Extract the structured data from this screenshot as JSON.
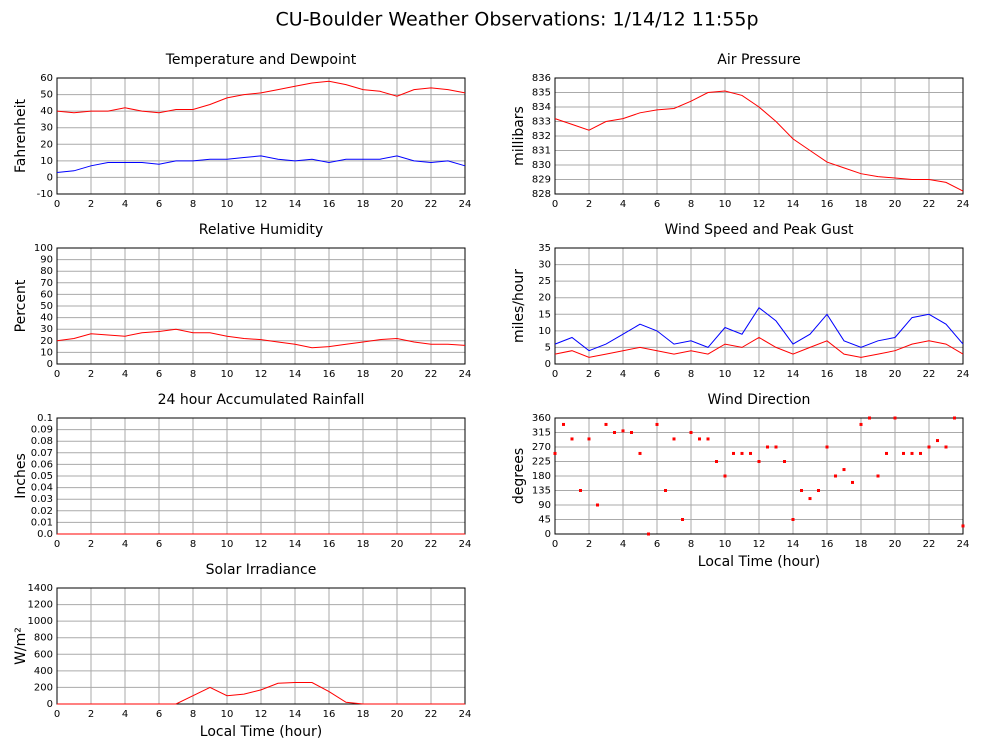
{
  "title": "CU-Boulder Weather Observations: 1/14/12 11:55p",
  "chart_data": [
    {
      "type": "line",
      "title": "Temperature and Dewpoint",
      "ylabel": "Fahrenheit",
      "x": [
        0,
        1,
        2,
        3,
        4,
        5,
        6,
        7,
        8,
        9,
        10,
        11,
        12,
        13,
        14,
        15,
        16,
        17,
        18,
        19,
        20,
        21,
        22,
        23,
        24
      ],
      "series": [
        {
          "color": "#ff0000",
          "values": [
            40,
            39,
            40,
            40,
            42,
            40,
            39,
            41,
            41,
            44,
            48,
            50,
            51,
            53,
            55,
            57,
            58,
            56,
            53,
            52,
            49,
            53,
            54,
            53,
            51
          ]
        },
        {
          "color": "#0000ff",
          "values": [
            3,
            4,
            7,
            9,
            9,
            9,
            8,
            10,
            10,
            11,
            11,
            12,
            13,
            11,
            10,
            11,
            9,
            11,
            11,
            11,
            13,
            10,
            9,
            10,
            7
          ]
        }
      ],
      "xlim": [
        0,
        24
      ],
      "xticks": [
        0,
        2,
        4,
        6,
        8,
        10,
        12,
        14,
        16,
        18,
        20,
        22,
        24
      ],
      "ylim": [
        -10,
        60
      ],
      "yticks": [
        -10,
        0,
        10,
        20,
        30,
        40,
        50,
        60
      ],
      "grid": true
    },
    {
      "type": "line",
      "title": "Air Pressure",
      "ylabel": "millibars",
      "x": [
        0,
        1,
        2,
        3,
        4,
        5,
        6,
        7,
        8,
        9,
        10,
        11,
        12,
        13,
        14,
        15,
        16,
        17,
        18,
        19,
        20,
        21,
        22,
        23,
        24
      ],
      "series": [
        {
          "color": "#ff0000",
          "values": [
            833.2,
            832.8,
            832.4,
            833.0,
            833.2,
            833.6,
            833.8,
            833.9,
            834.4,
            835.0,
            835.1,
            834.8,
            834.0,
            833.0,
            831.8,
            831.0,
            830.2,
            829.8,
            829.4,
            829.2,
            829.1,
            829.0,
            829.0,
            828.8,
            828.2
          ]
        }
      ],
      "xlim": [
        0,
        24
      ],
      "xticks": [
        0,
        2,
        4,
        6,
        8,
        10,
        12,
        14,
        16,
        18,
        20,
        22,
        24
      ],
      "ylim": [
        828,
        836
      ],
      "yticks": [
        828,
        829,
        830,
        831,
        832,
        833,
        834,
        835,
        836
      ],
      "grid": true
    },
    {
      "type": "line",
      "title": "Relative Humidity",
      "ylabel": "Percent",
      "x": [
        0,
        1,
        2,
        3,
        4,
        5,
        6,
        7,
        8,
        9,
        10,
        11,
        12,
        13,
        14,
        15,
        16,
        17,
        18,
        19,
        20,
        21,
        22,
        23,
        24
      ],
      "series": [
        {
          "color": "#ff0000",
          "values": [
            20,
            22,
            26,
            25,
            24,
            27,
            28,
            30,
            27,
            27,
            24,
            22,
            21,
            19,
            17,
            14,
            15,
            17,
            19,
            21,
            22,
            19,
            17,
            17,
            16
          ]
        }
      ],
      "xlim": [
        0,
        24
      ],
      "xticks": [
        0,
        2,
        4,
        6,
        8,
        10,
        12,
        14,
        16,
        18,
        20,
        22,
        24
      ],
      "ylim": [
        0,
        100
      ],
      "yticks": [
        0,
        10,
        20,
        30,
        40,
        50,
        60,
        70,
        80,
        90,
        100
      ],
      "grid": true
    },
    {
      "type": "line",
      "title": "Wind Speed and Peak Gust",
      "ylabel": "miles/hour",
      "x": [
        0,
        1,
        2,
        3,
        4,
        5,
        6,
        7,
        8,
        9,
        10,
        11,
        12,
        13,
        14,
        15,
        16,
        17,
        18,
        19,
        20,
        21,
        22,
        23,
        24
      ],
      "series": [
        {
          "color": "#0000ff",
          "values": [
            6,
            8,
            4,
            6,
            9,
            12,
            10,
            6,
            7,
            5,
            11,
            9,
            17,
            13,
            6,
            9,
            15,
            7,
            5,
            7,
            8,
            14,
            15,
            12,
            6
          ]
        },
        {
          "color": "#ff0000",
          "values": [
            3,
            4,
            2,
            3,
            4,
            5,
            4,
            3,
            4,
            3,
            6,
            5,
            8,
            5,
            3,
            5,
            7,
            3,
            2,
            3,
            4,
            6,
            7,
            6,
            3
          ]
        }
      ],
      "xlim": [
        0,
        24
      ],
      "xticks": [
        0,
        2,
        4,
        6,
        8,
        10,
        12,
        14,
        16,
        18,
        20,
        22,
        24
      ],
      "ylim": [
        0,
        35
      ],
      "yticks": [
        0,
        5,
        10,
        15,
        20,
        25,
        30,
        35
      ],
      "grid": true
    },
    {
      "type": "line",
      "title": "24 hour Accumulated Rainfall",
      "ylabel": "Inches",
      "x": [
        0,
        1,
        2,
        3,
        4,
        5,
        6,
        7,
        8,
        9,
        10,
        11,
        12,
        13,
        14,
        15,
        16,
        17,
        18,
        19,
        20,
        21,
        22,
        23,
        24
      ],
      "series": [
        {
          "color": "#ff0000",
          "values": [
            0,
            0,
            0,
            0,
            0,
            0,
            0,
            0,
            0,
            0,
            0,
            0,
            0,
            0,
            0,
            0,
            0,
            0,
            0,
            0,
            0,
            0,
            0,
            0,
            0
          ]
        }
      ],
      "xlim": [
        0,
        24
      ],
      "xticks": [
        0,
        2,
        4,
        6,
        8,
        10,
        12,
        14,
        16,
        18,
        20,
        22,
        24
      ],
      "ylim": [
        0,
        0.1
      ],
      "yticks": [
        {
          "value": 0,
          "label": "0.0"
        },
        0.01,
        0.02,
        0.03,
        0.04,
        0.05,
        0.06,
        0.07,
        0.08,
        0.09,
        0.1
      ],
      "grid": true
    },
    {
      "type": "scatter",
      "title": "Wind Direction",
      "ylabel": "degrees",
      "xlabel": "Local Time (hour)",
      "x": [
        0,
        0.5,
        1,
        1.5,
        2,
        2.5,
        3,
        3.5,
        4,
        4.5,
        5,
        5.5,
        6,
        6.5,
        7,
        7.5,
        8,
        8.5,
        9,
        9.5,
        10,
        10.5,
        11,
        11.5,
        12,
        12.5,
        13,
        13.5,
        14,
        14.5,
        15,
        15.5,
        16,
        16.5,
        17,
        17.5,
        18,
        18.5,
        19,
        19.5,
        20,
        20.5,
        21,
        21.5,
        22,
        22.5,
        23,
        23.5,
        24
      ],
      "series": [
        {
          "color": "#ff0000",
          "values": [
            250,
            340,
            295,
            135,
            295,
            90,
            340,
            315,
            320,
            315,
            250,
            0,
            340,
            135,
            295,
            45,
            315,
            295,
            295,
            225,
            180,
            250,
            250,
            250,
            225,
            270,
            270,
            225,
            45,
            135,
            110,
            135,
            270,
            180,
            200,
            160,
            340,
            360,
            180,
            250,
            360,
            250,
            250,
            250,
            270,
            290,
            270,
            360,
            25
          ]
        }
      ],
      "xlim": [
        0,
        24
      ],
      "xticks": [
        0,
        2,
        4,
        6,
        8,
        10,
        12,
        14,
        16,
        18,
        20,
        22,
        24
      ],
      "ylim": [
        0,
        360
      ],
      "yticks": [
        0,
        45,
        90,
        135,
        180,
        225,
        270,
        315,
        360
      ],
      "grid": true
    },
    {
      "type": "line",
      "title": "Solar Irradiance",
      "ylabel": "W/m²",
      "xlabel": "Local Time (hour)",
      "x": [
        0,
        1,
        2,
        3,
        4,
        5,
        6,
        7,
        8,
        9,
        10,
        11,
        12,
        13,
        14,
        15,
        16,
        17,
        18,
        19,
        20,
        21,
        22,
        23,
        24
      ],
      "series": [
        {
          "color": "#ff0000",
          "values": [
            0,
            0,
            0,
            0,
            0,
            0,
            0,
            0,
            100,
            200,
            100,
            120,
            170,
            250,
            260,
            260,
            150,
            20,
            0,
            0,
            0,
            0,
            0,
            0,
            0
          ]
        }
      ],
      "xlim": [
        0,
        24
      ],
      "xticks": [
        0,
        2,
        4,
        6,
        8,
        10,
        12,
        14,
        16,
        18,
        20,
        22,
        24
      ],
      "ylim": [
        0,
        1400
      ],
      "yticks": [
        0,
        200,
        400,
        600,
        800,
        1000,
        1200,
        1400
      ],
      "grid": true
    }
  ]
}
